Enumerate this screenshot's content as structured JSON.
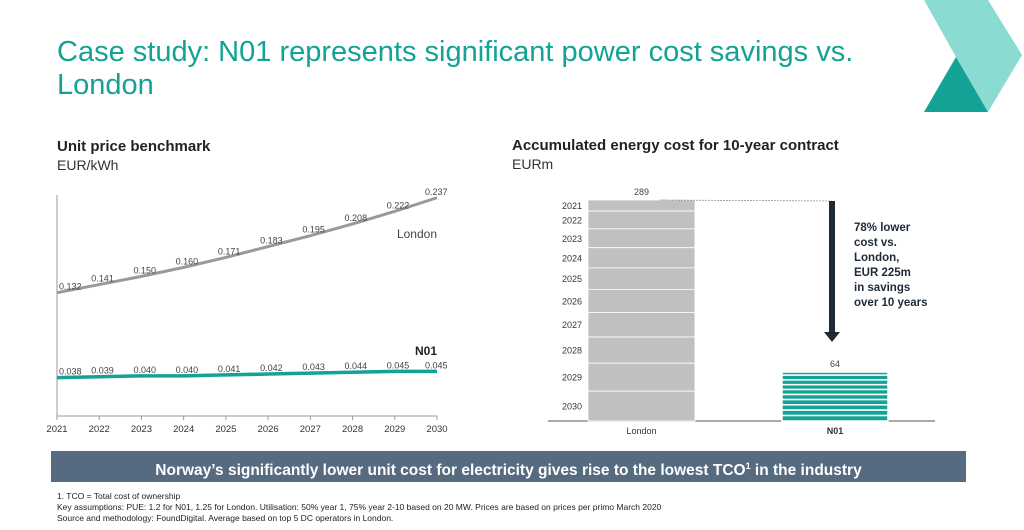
{
  "title": "Case study: N01 represents significant power cost savings vs. London",
  "colors": {
    "teal": "#12a396",
    "light_teal": "#8adcd2",
    "grey": "#999999",
    "bar_grey": "#c0c0c0",
    "banner": "#566a80",
    "arrow": "#1e2a38"
  },
  "chart_data": [
    {
      "type": "line",
      "title": "Unit price benchmark",
      "ylabel": "EUR/kWh",
      "x": [
        2021,
        2022,
        2023,
        2024,
        2025,
        2026,
        2027,
        2028,
        2029,
        2030
      ],
      "x_tick_labels": [
        "2021",
        "2022",
        "2023",
        "2024",
        "2025",
        "2026",
        "2027",
        "2028",
        "2029",
        "2030"
      ],
      "series": [
        {
          "name": "London",
          "values": [
            0.132,
            0.141,
            0.15,
            0.16,
            0.171,
            0.183,
            0.195,
            0.208,
            0.222,
            0.237
          ],
          "labels": [
            "0.132",
            "0.141",
            "0.150",
            "0.160",
            "0.171",
            "0.183",
            "0.195",
            "0.208",
            "0.222",
            "0.237"
          ],
          "color": "#999999"
        },
        {
          "name": "N01",
          "values": [
            0.038,
            0.039,
            0.04,
            0.04,
            0.041,
            0.042,
            0.043,
            0.044,
            0.045,
            0.045
          ],
          "labels": [
            "0.038",
            "0.039",
            "0.040",
            "0.040",
            "0.041",
            "0.042",
            "0.043",
            "0.044",
            "0.045",
            "0.045"
          ],
          "color": "#12a396"
        }
      ],
      "grid": false
    },
    {
      "type": "bar",
      "stacked": true,
      "title": "Accumulated energy cost for 10-year contract",
      "ylabel": "EURm",
      "categories": [
        "London",
        "N01"
      ],
      "values": [
        289,
        64
      ],
      "value_labels": [
        "289",
        "64"
      ],
      "segment_labels": [
        "2021",
        "2022",
        "2023",
        "2024",
        "2025",
        "2026",
        "2027",
        "2028",
        "2029",
        "2030"
      ],
      "annotation": [
        "78% lower",
        "cost vs.",
        "London,",
        "EUR 225m",
        "in savings",
        "over 10 years"
      ]
    }
  ],
  "banner": {
    "text_before": "Norway’s significantly lower unit cost for electricity gives rise to the lowest TCO",
    "sup": "1",
    "text_after": " in the industry"
  },
  "footnotes": [
    "1. TCO = Total cost of ownership",
    "Key assumptions: PUE: 1.2 for N01, 1.25 for London. Utilisation: 50% year 1, 75% year 2-10 based on 20 MW.  Prices are based on prices per primo March 2020",
    "Source and methodology: FoundDigital. Average based on top 5 DC operators in London."
  ]
}
